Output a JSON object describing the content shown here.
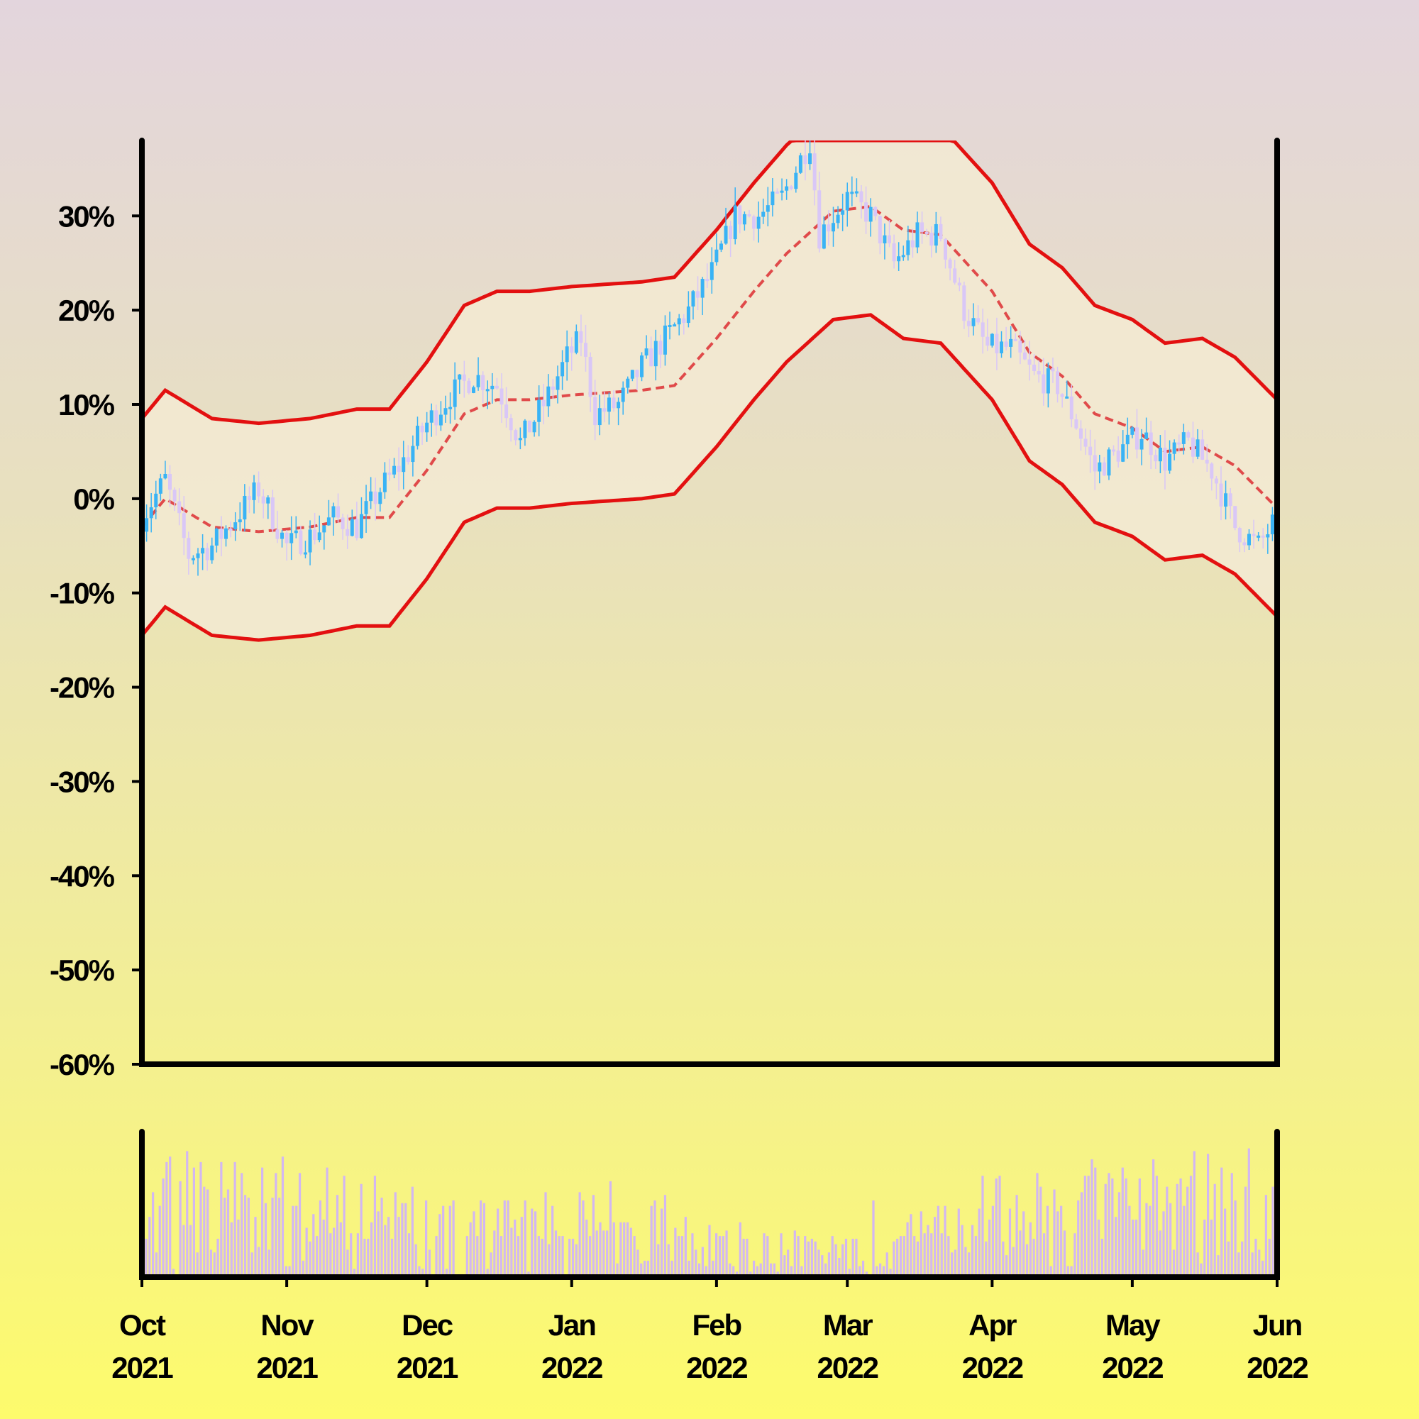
{
  "chart_data": {
    "type": "candlestick",
    "price_panel": {
      "ylim": [
        -0.6,
        0.38
      ],
      "yticks": [
        {
          "value": 0.3,
          "label": "30%"
        },
        {
          "value": 0.2,
          "label": "20%"
        },
        {
          "value": 0.1,
          "label": "10%"
        },
        {
          "value": 0.0,
          "label": "0%"
        },
        {
          "value": -0.1,
          "label": "-10%"
        },
        {
          "value": -0.2,
          "label": "-20%"
        },
        {
          "value": -0.3,
          "label": "-30%"
        },
        {
          "value": -0.4,
          "label": "-40%"
        },
        {
          "value": -0.5,
          "label": "-50%"
        },
        {
          "value": -0.6,
          "label": "-60%"
        }
      ],
      "mid_band_anchors": [
        [
          "2021-10-01",
          -0.03
        ],
        [
          "2021-10-06",
          0.0
        ],
        [
          "2021-10-16",
          -0.03
        ],
        [
          "2021-10-26",
          -0.035
        ],
        [
          "2021-11-06",
          -0.03
        ],
        [
          "2021-11-16",
          -0.02
        ],
        [
          "2021-11-23",
          -0.02
        ],
        [
          "2021-12-01",
          0.03
        ],
        [
          "2021-12-09",
          0.09
        ],
        [
          "2021-12-16",
          0.105
        ],
        [
          "2021-12-23",
          0.105
        ],
        [
          "2022-01-01",
          0.11
        ],
        [
          "2022-01-16",
          0.115
        ],
        [
          "2022-01-23",
          0.12
        ],
        [
          "2022-02-01",
          0.17
        ],
        [
          "2022-02-09",
          0.22
        ],
        [
          "2022-02-16",
          0.26
        ],
        [
          "2022-02-26",
          0.305
        ],
        [
          "2022-03-06",
          0.31
        ],
        [
          "2022-03-13",
          0.285
        ],
        [
          "2022-03-21",
          0.28
        ],
        [
          "2022-04-01",
          0.22
        ],
        [
          "2022-04-09",
          0.155
        ],
        [
          "2022-04-16",
          0.13
        ],
        [
          "2022-04-23",
          0.09
        ],
        [
          "2022-05-01",
          0.075
        ],
        [
          "2022-05-08",
          0.05
        ],
        [
          "2022-05-16",
          0.055
        ],
        [
          "2022-05-23",
          0.035
        ],
        [
          "2022-06-01",
          -0.01
        ]
      ],
      "band_width": 0.115,
      "band_upper_cap": 0.38,
      "candle_anchors": [
        [
          "2021-10-01",
          -0.02
        ],
        [
          "2021-10-06",
          0.02
        ],
        [
          "2021-10-11",
          -0.06
        ],
        [
          "2021-10-16",
          -0.05
        ],
        [
          "2021-10-21",
          -0.02
        ],
        [
          "2021-10-26",
          0.01
        ],
        [
          "2021-11-01",
          -0.05
        ],
        [
          "2021-11-06",
          -0.04
        ],
        [
          "2021-11-11",
          -0.02
        ],
        [
          "2021-11-16",
          -0.03
        ],
        [
          "2021-11-21",
          0.01
        ],
        [
          "2021-11-26",
          0.04
        ],
        [
          "2021-12-01",
          0.08
        ],
        [
          "2021-12-06",
          0.11
        ],
        [
          "2021-12-11",
          0.13
        ],
        [
          "2021-12-16",
          0.12
        ],
        [
          "2021-12-21",
          0.06
        ],
        [
          "2021-12-26",
          0.1
        ],
        [
          "2021-12-31",
          0.15
        ],
        [
          "2022-01-03",
          0.17
        ],
        [
          "2022-01-06",
          0.09
        ],
        [
          "2022-01-11",
          0.1
        ],
        [
          "2022-01-16",
          0.14
        ],
        [
          "2022-01-21",
          0.17
        ],
        [
          "2022-01-26",
          0.2
        ],
        [
          "2022-01-31",
          0.24
        ],
        [
          "2022-02-05",
          0.3
        ],
        [
          "2022-02-10",
          0.3
        ],
        [
          "2022-02-15",
          0.32
        ],
        [
          "2022-02-21",
          0.38
        ],
        [
          "2022-02-23",
          0.28
        ],
        [
          "2022-03-01",
          0.32
        ],
        [
          "2022-03-06",
          0.3
        ],
        [
          "2022-03-11",
          0.25
        ],
        [
          "2022-03-16",
          0.28
        ],
        [
          "2022-03-21",
          0.28
        ],
        [
          "2022-03-26",
          0.2
        ],
        [
          "2022-03-31",
          0.16
        ],
        [
          "2022-04-05",
          0.16
        ],
        [
          "2022-04-10",
          0.13
        ],
        [
          "2022-04-15",
          0.12
        ],
        [
          "2022-04-19",
          0.08
        ],
        [
          "2022-04-23",
          0.03
        ],
        [
          "2022-04-28",
          0.05
        ],
        [
          "2022-05-03",
          0.07
        ],
        [
          "2022-05-08",
          0.04
        ],
        [
          "2022-05-13",
          0.06
        ],
        [
          "2022-05-18",
          0.03
        ],
        [
          "2022-05-23",
          -0.03
        ],
        [
          "2022-05-28",
          -0.05
        ],
        [
          "2022-06-01",
          -0.02
        ]
      ],
      "up_color": "#39b3f5",
      "down_color": "#d9c7f7",
      "band_line_color": "#e31010",
      "band_fill_color": "#f3ead2"
    },
    "volume_panel": {
      "bar_color": "#d2b7f2",
      "values": [
        0.28,
        0.44,
        0.62,
        0.18,
        0.52,
        0.72,
        0.84,
        0.88,
        0.06,
        0.02,
        0.7,
        0.38,
        0.92,
        0.38,
        0.8,
        0.18,
        0.84,
        0.66,
        0.64,
        0.2,
        0.18,
        0.28,
        0.84,
        0.58,
        0.64,
        0.4,
        0.84,
        0.42,
        0.76,
        0.6,
        0.58,
        0.18,
        0.44,
        0.22,
        0.8,
        0.54,
        0.2,
        0.58,
        0.76,
        0.58,
        0.88,
        0.08,
        0.08,
        0.52,
        0.52,
        0.76,
        0.12,
        0.36,
        0.26,
        0.46,
        0.3,
        0.56,
        0.42,
        0.8,
        0.32,
        0.36,
        0.6,
        0.4,
        0.74,
        0.2,
        0.32,
        0.06,
        0.32,
        0.68,
        0.28,
        0.28,
        0.4,
        0.74,
        0.48,
        0.58,
        0.38,
        0.44,
        0.28,
        0.62,
        0.44,
        0.54,
        0.54,
        0.32,
        0.66,
        0.24,
        0.08,
        0.06,
        0.56,
        0.2,
        0.02,
        0.3,
        0.46,
        0.52,
        0.06,
        0.52,
        0.56,
        0.02,
        0.02,
        0.02,
        0.3,
        0.4,
        0.48,
        0.3,
        0.56,
        0.54,
        0.06,
        0.18,
        0.34,
        0.5,
        0.3,
        0.56,
        0.56,
        0.36,
        0.42,
        0.3,
        0.44,
        0.56,
        0.04,
        0.5,
        0.48,
        0.3,
        0.28,
        0.62,
        0.24,
        0.52,
        0.34,
        0.3,
        0.3,
        0.02,
        0.28,
        0.28,
        0.24,
        0.62,
        0.56,
        0.42,
        0.3,
        0.6,
        0.34,
        0.4,
        0.34,
        0.34,
        0.7,
        0.4,
        0.1,
        0.4,
        0.4,
        0.4,
        0.36,
        0.3,
        0.2,
        0.1,
        0.12,
        0.12,
        0.52,
        0.56,
        0.24,
        0.5,
        0.6,
        0.24,
        0.12,
        0.36,
        0.3,
        0.3,
        0.44,
        0.12,
        0.32,
        0.2,
        0.1,
        0.22,
        0.08,
        0.38,
        0.12,
        0.32,
        0.3,
        0.3,
        0.34,
        0.1,
        0.08,
        0.04,
        0.4,
        0.28,
        0.28,
        0.04,
        0.12,
        0.08,
        0.1,
        0.32,
        0.3,
        0.1,
        0.1,
        0.04,
        0.32,
        0.16,
        0.2,
        0.08,
        0.34,
        0.3,
        0.08,
        0.3,
        0.26,
        0.28,
        0.26,
        0.2,
        0.16,
        0.1,
        0.18,
        0.3,
        0.24,
        0.14,
        0.24,
        0.28,
        0.06,
        0.28,
        0.28,
        0.08,
        0.12,
        0.04,
        0.02,
        0.56,
        0.08,
        0.1,
        0.08,
        0.18,
        0.06,
        0.26,
        0.28,
        0.3,
        0.3,
        0.4,
        0.46,
        0.3,
        0.26,
        0.48,
        0.32,
        0.38,
        0.32,
        0.44,
        0.52,
        0.32,
        0.52,
        0.3,
        0.18,
        0.2,
        0.5,
        0.38,
        0.22,
        0.18,
        0.38,
        0.3,
        0.5,
        0.74,
        0.26,
        0.42,
        0.52,
        0.72,
        0.74,
        0.26,
        0.16,
        0.5,
        0.22,
        0.6,
        0.34,
        0.48,
        0.24,
        0.4,
        0.28,
        0.76,
        0.66,
        0.32,
        0.52,
        0.08,
        0.64,
        0.48,
        0.52,
        0.34,
        0.08,
        0.08,
        0.32,
        0.56,
        0.62,
        0.74,
        0.74,
        0.86,
        0.8,
        0.42,
        0.28,
        0.68,
        0.76,
        0.72,
        0.44,
        0.62,
        0.8,
        0.72,
        0.52,
        0.42,
        0.42,
        0.72,
        0.2,
        0.54,
        0.52,
        0.86,
        0.74,
        0.34,
        0.48,
        0.66,
        0.54,
        0.2,
        0.68,
        0.72,
        0.52,
        0.66,
        0.74,
        0.92,
        0.18,
        0.1,
        0.42,
        0.9,
        0.42,
        0.68,
        0.16,
        0.8,
        0.5,
        0.26,
        0.76,
        0.56,
        0.18,
        0.26,
        0.66,
        0.94,
        0.18,
        0.28,
        0.2,
        0.12,
        0.6,
        0.28,
        0.66
      ]
    },
    "x_axis": {
      "start": "2021-10-01",
      "end": "2022-06-01",
      "ticks": [
        {
          "date": "2021-10-01",
          "month": "Oct",
          "year": "2021"
        },
        {
          "date": "2021-11-01",
          "month": "Nov",
          "year": "2021"
        },
        {
          "date": "2021-12-01",
          "month": "Dec",
          "year": "2021"
        },
        {
          "date": "2022-01-01",
          "month": "Jan",
          "year": "2022"
        },
        {
          "date": "2022-02-01",
          "month": "Feb",
          "year": "2022"
        },
        {
          "date": "2022-03-01",
          "month": "Mar",
          "year": "2022"
        },
        {
          "date": "2022-04-01",
          "month": "Apr",
          "year": "2022"
        },
        {
          "date": "2022-05-01",
          "month": "May",
          "year": "2022"
        },
        {
          "date": "2022-06-01",
          "month": "Jun",
          "year": "2022"
        }
      ]
    }
  }
}
